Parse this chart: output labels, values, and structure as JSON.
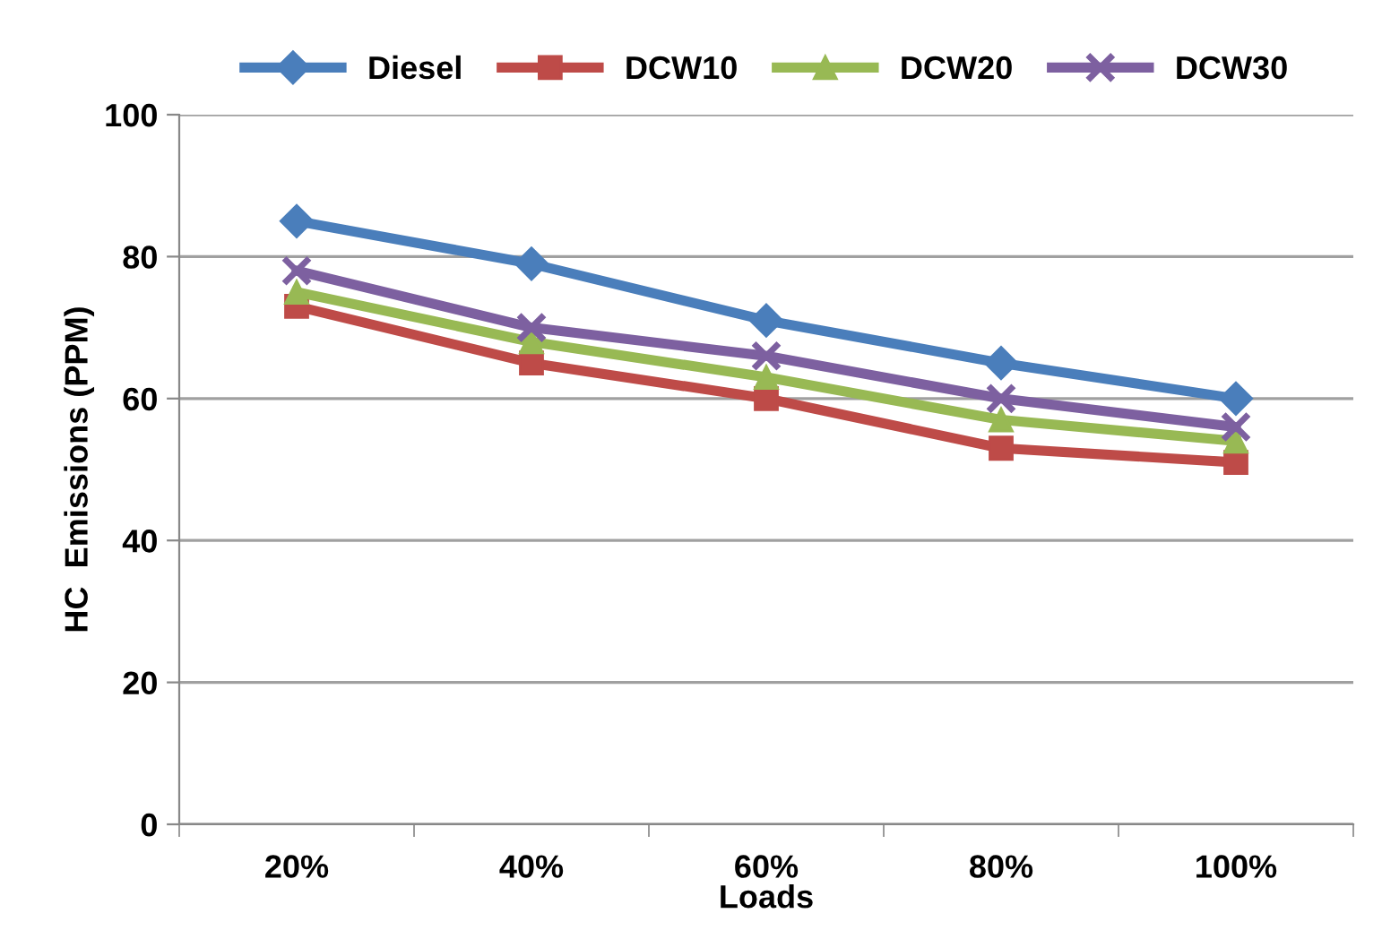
{
  "chart_data": {
    "type": "line",
    "xlabel": "Loads",
    "ylabel": "HC  Emissions (PPM)",
    "categories": [
      "20%",
      "40%",
      "60%",
      "80%",
      "100%"
    ],
    "series": [
      {
        "name": "Diesel",
        "color": "#4a7ebb",
        "marker": "diamond",
        "values": [
          85,
          79,
          71,
          65,
          60
        ]
      },
      {
        "name": "DCW10",
        "color": "#be4b48",
        "marker": "square",
        "values": [
          73,
          65,
          60,
          53,
          51
        ]
      },
      {
        "name": "DCW20",
        "color": "#98b954",
        "marker": "triangle",
        "values": [
          75,
          68,
          63,
          57,
          54
        ]
      },
      {
        "name": "DCW30",
        "color": "#7d60a0",
        "marker": "cross",
        "values": [
          78,
          70,
          66,
          60,
          56
        ]
      }
    ],
    "ylim": [
      0,
      100
    ],
    "yticks": [
      0,
      20,
      40,
      60,
      80,
      100
    ],
    "grid": "y",
    "legend": "top",
    "line_style": "solid"
  }
}
